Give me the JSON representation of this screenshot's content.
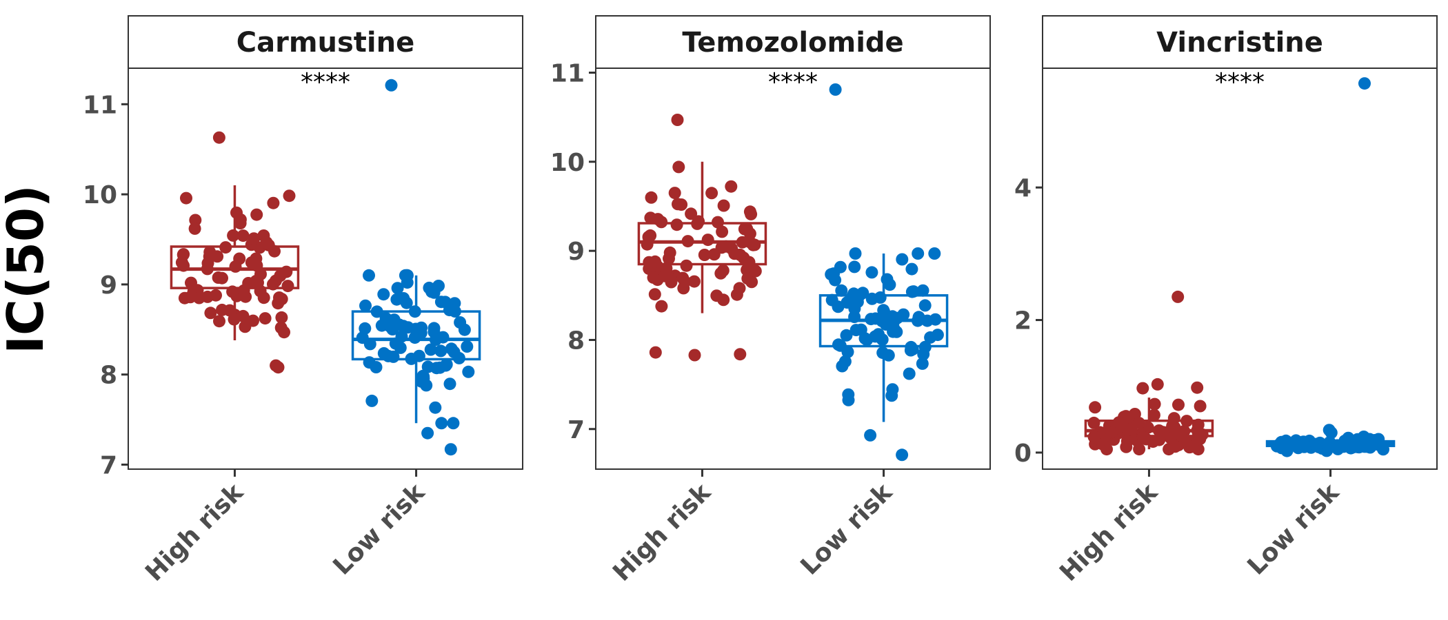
{
  "chart_data": {
    "type": "boxplot",
    "ylabel": "IC(50)",
    "colors": {
      "High risk": "#a52a2a",
      "Low risk": "#0072c6"
    },
    "categories": [
      "High risk",
      "Low risk"
    ],
    "panels": [
      {
        "title": "Carmustine",
        "significance": "****",
        "ylim": [
          6.95,
          11.4
        ],
        "yticks": [
          7,
          8,
          9,
          10,
          11
        ],
        "groups": [
          {
            "name": "High risk",
            "box": {
              "min": 8.38,
              "q1": 8.96,
              "median": 9.17,
              "q3": 9.42,
              "max": 10.1
            },
            "outliers": [
              8.08,
              8.1,
              10.63
            ],
            "n_points": 75,
            "seed": 11,
            "spread": 0.14
          },
          {
            "name": "Low risk",
            "box": {
              "min": 7.46,
              "q1": 8.17,
              "median": 8.39,
              "q3": 8.7,
              "max": 9.1
            },
            "outliers": [
              7.35,
              7.17,
              11.21
            ],
            "n_points": 75,
            "seed": 23,
            "spread": 0.14
          }
        ]
      },
      {
        "title": "Temozolomide",
        "significance": "****",
        "ylim": [
          6.55,
          11.05
        ],
        "yticks": [
          7,
          8,
          9,
          10,
          11
        ],
        "groups": [
          {
            "name": "High risk",
            "box": {
              "min": 8.3,
              "q1": 8.85,
              "median": 9.1,
              "q3": 9.31,
              "max": 10.0
            },
            "outliers": [
              7.83,
              7.86,
              7.84,
              10.47
            ],
            "n_points": 75,
            "seed": 37,
            "spread": 0.14
          },
          {
            "name": "Low risk",
            "box": {
              "min": 7.08,
              "q1": 7.93,
              "median": 8.22,
              "q3": 8.5,
              "max": 8.97
            },
            "outliers": [
              6.93,
              6.71,
              10.81
            ],
            "n_points": 75,
            "seed": 53,
            "spread": 0.14
          }
        ]
      },
      {
        "title": "Vincristine",
        "significance": "****",
        "ylim": [
          -0.25,
          5.8
        ],
        "yticks": [
          0,
          2,
          4
        ],
        "groups": [
          {
            "name": "High risk",
            "box": {
              "min": 0.05,
              "q1": 0.25,
              "median": 0.33,
              "q3": 0.48,
              "max": 0.83
            },
            "outliers": [
              0.97,
              1.03,
              0.98,
              2.35
            ],
            "n_points": 75,
            "seed": 71,
            "spread": 0.14
          },
          {
            "name": "Low risk",
            "box": {
              "min": 0.02,
              "q1": 0.1,
              "median": 0.13,
              "q3": 0.17,
              "max": 0.27
            },
            "outliers": [
              0.3,
              0.34,
              5.57
            ],
            "n_points": 75,
            "seed": 89,
            "spread": 0.14
          }
        ]
      }
    ]
  }
}
